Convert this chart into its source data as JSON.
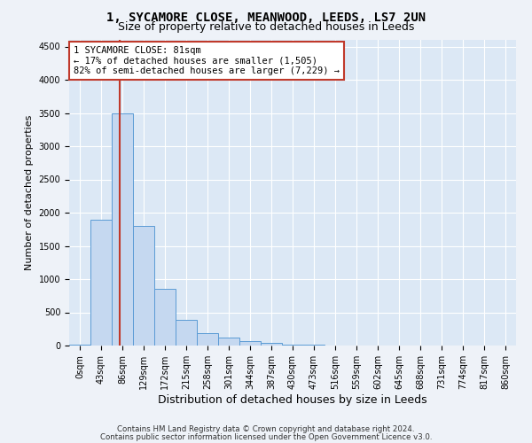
{
  "title1": "1, SYCAMORE CLOSE, MEANWOOD, LEEDS, LS7 2UN",
  "title2": "Size of property relative to detached houses in Leeds",
  "xlabel": "Distribution of detached houses by size in Leeds",
  "ylabel": "Number of detached properties",
  "bar_labels": [
    "0sqm",
    "43sqm",
    "86sqm",
    "129sqm",
    "172sqm",
    "215sqm",
    "258sqm",
    "301sqm",
    "344sqm",
    "387sqm",
    "430sqm",
    "473sqm",
    "516sqm",
    "559sqm",
    "602sqm",
    "645sqm",
    "688sqm",
    "731sqm",
    "774sqm",
    "817sqm",
    "860sqm"
  ],
  "bar_values": [
    10,
    1900,
    3500,
    1800,
    850,
    390,
    190,
    120,
    65,
    35,
    18,
    12,
    5,
    2,
    1,
    0,
    0,
    0,
    0,
    0,
    0
  ],
  "bar_color": "#c5d8f0",
  "bar_edge_color": "#5b9bd5",
  "ylim": [
    0,
    4600
  ],
  "yticks": [
    0,
    500,
    1000,
    1500,
    2000,
    2500,
    3000,
    3500,
    4000,
    4500
  ],
  "vline_color": "#c0392b",
  "vline_x": 1.88,
  "annotation_text": "1 SYCAMORE CLOSE: 81sqm\n← 17% of detached houses are smaller (1,505)\n82% of semi-detached houses are larger (7,229) →",
  "annotation_box_color": "#c0392b",
  "annotation_fill_color": "#ffffff",
  "footer1": "Contains HM Land Registry data © Crown copyright and database right 2024.",
  "footer2": "Contains public sector information licensed under the Open Government Licence v3.0.",
  "bg_color": "#eef2f8",
  "plot_bg_color": "#dce8f5",
  "grid_color": "#ffffff",
  "title_fontsize": 10,
  "subtitle_fontsize": 9,
  "ylabel_fontsize": 8,
  "xlabel_fontsize": 9,
  "tick_fontsize": 7
}
